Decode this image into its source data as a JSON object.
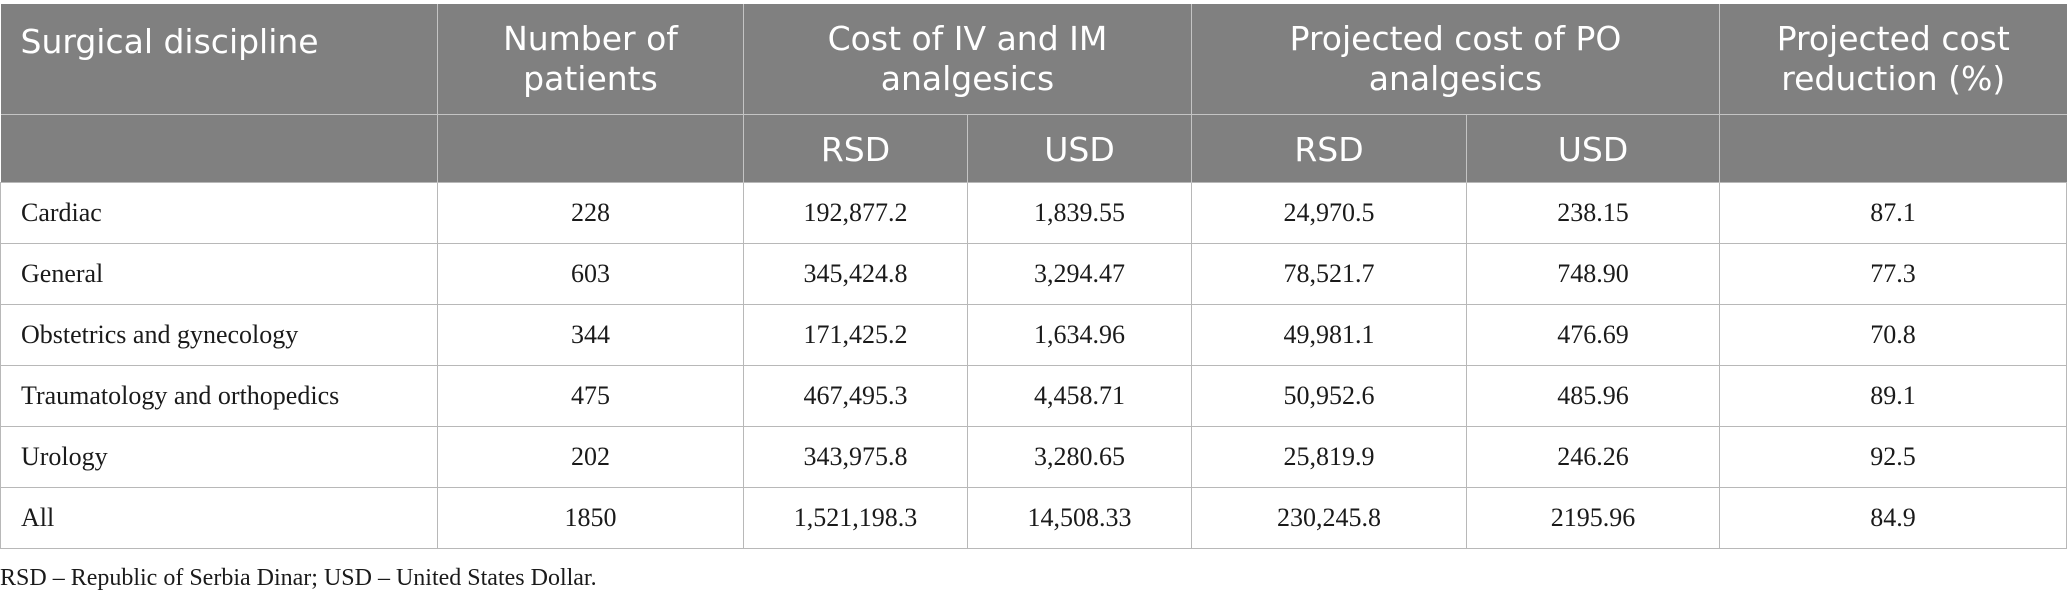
{
  "table": {
    "headers": {
      "discipline": "Surgical discipline",
      "patients": "Number of patients",
      "iv_im_cost": "Cost of IV and IM analgesics",
      "po_cost": "Projected cost of PO analgesics",
      "reduction": "Projected cost reduction (%)",
      "iv_rsd": "RSD",
      "iv_usd": "USD",
      "po_rsd": "RSD",
      "po_usd": "USD"
    },
    "rows": [
      {
        "discipline": "Cardiac",
        "patients": "228",
        "iv_rsd": "192,877.2",
        "iv_usd": "1,839.55",
        "po_rsd": "24,970.5",
        "po_usd": "238.15",
        "reduction": "87.1"
      },
      {
        "discipline": "General",
        "patients": "603",
        "iv_rsd": "345,424.8",
        "iv_usd": "3,294.47",
        "po_rsd": "78,521.7",
        "po_usd": "748.90",
        "reduction": "77.3"
      },
      {
        "discipline": "Obstetrics and gynecology",
        "patients": "344",
        "iv_rsd": "171,425.2",
        "iv_usd": "1,634.96",
        "po_rsd": "49,981.1",
        "po_usd": "476.69",
        "reduction": "70.8"
      },
      {
        "discipline": "Traumatology and orthopedics",
        "patients": "475",
        "iv_rsd": "467,495.3",
        "iv_usd": "4,458.71",
        "po_rsd": "50,952.6",
        "po_usd": "485.96",
        "reduction": "89.1"
      },
      {
        "discipline": "Urology",
        "patients": "202",
        "iv_rsd": "343,975.8",
        "iv_usd": "3,280.65",
        "po_rsd": "25,819.9",
        "po_usd": "246.26",
        "reduction": "92.5"
      },
      {
        "discipline": "All",
        "patients": "1850",
        "iv_rsd": "1,521,198.3",
        "iv_usd": "14,508.33",
        "po_rsd": "230,245.8",
        "po_usd": "2195.96",
        "reduction": "84.9"
      }
    ]
  },
  "footnote": "RSD – Republic of Serbia Dinar; USD – United States Dollar."
}
